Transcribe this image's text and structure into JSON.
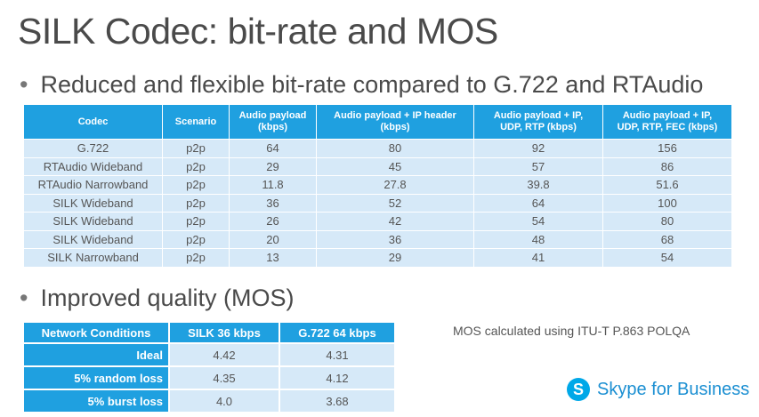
{
  "title": "SILK Codec: bit-rate and MOS",
  "bullets": {
    "first": "Reduced and flexible bit-rate compared to G.722 and RTAudio",
    "second": "Improved quality (MOS)",
    "marker": "•"
  },
  "bitrate_table": {
    "headers": [
      [
        "Codec"
      ],
      [
        "Scenario"
      ],
      [
        "Audio payload",
        "(kbps)"
      ],
      [
        "Audio payload + IP header",
        "(kbps)"
      ],
      [
        "Audio payload + IP,",
        "UDP, RTP (kbps)"
      ],
      [
        "Audio payload + IP,",
        "UDP, RTP, FEC (kbps)"
      ]
    ],
    "rows": [
      [
        "G.722",
        "p2p",
        "64",
        "80",
        "92",
        "156"
      ],
      [
        "RTAudio Wideband",
        "p2p",
        "29",
        "45",
        "57",
        "86"
      ],
      [
        "RTAudio Narrowband",
        "p2p",
        "11.8",
        "27.8",
        "39.8",
        "51.6"
      ],
      [
        "SILK Wideband",
        "p2p",
        "36",
        "52",
        "64",
        "100"
      ],
      [
        "SILK Wideband",
        "p2p",
        "26",
        "42",
        "54",
        "80"
      ],
      [
        "SILK Wideband",
        "p2p",
        "20",
        "36",
        "48",
        "68"
      ],
      [
        "SILK Narrowband",
        "p2p",
        "13",
        "29",
        "41",
        "54"
      ]
    ]
  },
  "mos_table": {
    "headers": [
      "Network Conditions",
      "SILK 36 kbps",
      "G.722 64 kbps"
    ],
    "rows": [
      [
        "Ideal",
        "4.42",
        "4.31"
      ],
      [
        "5% random loss",
        "4.35",
        "4.12"
      ],
      [
        "5% burst loss",
        "4.0",
        "3.68"
      ]
    ]
  },
  "note": "MOS calculated using ITU-T P.863 POLQA",
  "brand": {
    "logo_letter": "S",
    "name": "Skype for Business",
    "color": "#1b8fd2"
  },
  "colors": {
    "header_blue": "#1fa0e0",
    "row_light_blue": "#d6e9f8"
  }
}
